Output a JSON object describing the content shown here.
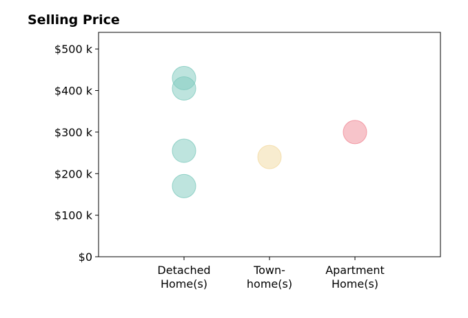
{
  "chart_data": {
    "type": "scatter",
    "title": "Selling Price",
    "xlabel": "",
    "ylabel": "",
    "categories": [
      [
        "Detached",
        "Home(s)"
      ],
      [
        "Town-",
        "home(s)"
      ],
      [
        "Apartment",
        "Home(s)"
      ]
    ],
    "x_range": [
      0,
      4
    ],
    "ylim": [
      0,
      540
    ],
    "y_ticks": [
      0,
      100,
      200,
      300,
      400,
      500
    ],
    "y_tick_labels": [
      "$0",
      "$100 k",
      "$200 k",
      "$300 k",
      "$400 k",
      "$500 k"
    ],
    "grid": false,
    "points": [
      {
        "category": 1,
        "value": 430,
        "color": "#7dc9bd"
      },
      {
        "category": 1,
        "value": 405,
        "color": "#7dc9bd"
      },
      {
        "category": 1,
        "value": 255,
        "color": "#7dc9bd"
      },
      {
        "category": 1,
        "value": 170,
        "color": "#7dc9bd"
      },
      {
        "category": 2,
        "value": 240,
        "color": "#f2d9a0"
      },
      {
        "category": 3,
        "value": 300,
        "color": "#f08a96"
      }
    ],
    "marker_opacity": 0.5
  }
}
